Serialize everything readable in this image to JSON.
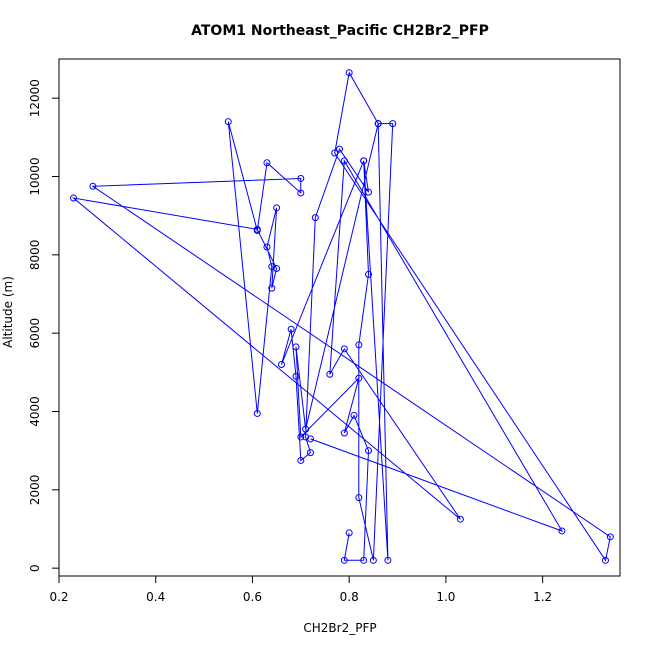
{
  "chart_data": {
    "type": "line",
    "title": "ATOM1 Northeast_Pacific CH2Br2_PFP",
    "xlabel": "CH2Br2_PFP",
    "ylabel": "Altitude (m)",
    "xlim": [
      0.2,
      1.36
    ],
    "ylim": [
      -200,
      13000
    ],
    "x_ticks": [
      0.2,
      0.4,
      0.6,
      0.8,
      1.0,
      1.2
    ],
    "x_tick_labels": [
      "0.2",
      "0.4",
      "0.6",
      "0.8",
      "1.0",
      "1.2"
    ],
    "y_ticks": [
      0,
      2000,
      4000,
      6000,
      8000,
      10000,
      12000
    ],
    "y_tick_labels": [
      "0",
      "2000",
      "4000",
      "6000",
      "8000",
      "10000",
      "12000"
    ],
    "grid": false,
    "marker": "open-circle",
    "series_color": "#0000ff",
    "series": [
      {
        "x": [
          0.8,
          0.79,
          0.83,
          0.84,
          0.81,
          0.79,
          0.82,
          0.7,
          0.69,
          0.71,
          0.86,
          0.89,
          0.85,
          0.82,
          0.82,
          0.84,
          0.83,
          0.84,
          0.78,
          0.73,
          0.71,
          0.72,
          0.7,
          0.69,
          0.68,
          0.66,
          0.83,
          0.88,
          0.86,
          0.8,
          0.77,
          1.33,
          1.34,
          0.27,
          0.7,
          0.7,
          0.63,
          0.61,
          0.55,
          0.61,
          0.64,
          0.63,
          0.65,
          0.64,
          0.65,
          0.61,
          0.23,
          1.03,
          0.79,
          0.76,
          0.79,
          1.24,
          0.72
        ],
        "y": [
          900,
          200,
          200,
          3000,
          3900,
          3450,
          4850,
          3350,
          5650,
          3550,
          11350,
          11350,
          200,
          1800,
          5700,
          7500,
          10400,
          9600,
          10700,
          8950,
          3350,
          2950,
          2750,
          4900,
          6100,
          5200,
          10400,
          200,
          11350,
          12650,
          10600,
          200,
          800,
          9750,
          9950,
          9580,
          10350,
          8620,
          11400,
          3950,
          7700,
          8200,
          9200,
          7150,
          7650,
          8650,
          9450,
          1250,
          5600,
          4950,
          10400,
          950,
          3300
        ]
      }
    ]
  }
}
